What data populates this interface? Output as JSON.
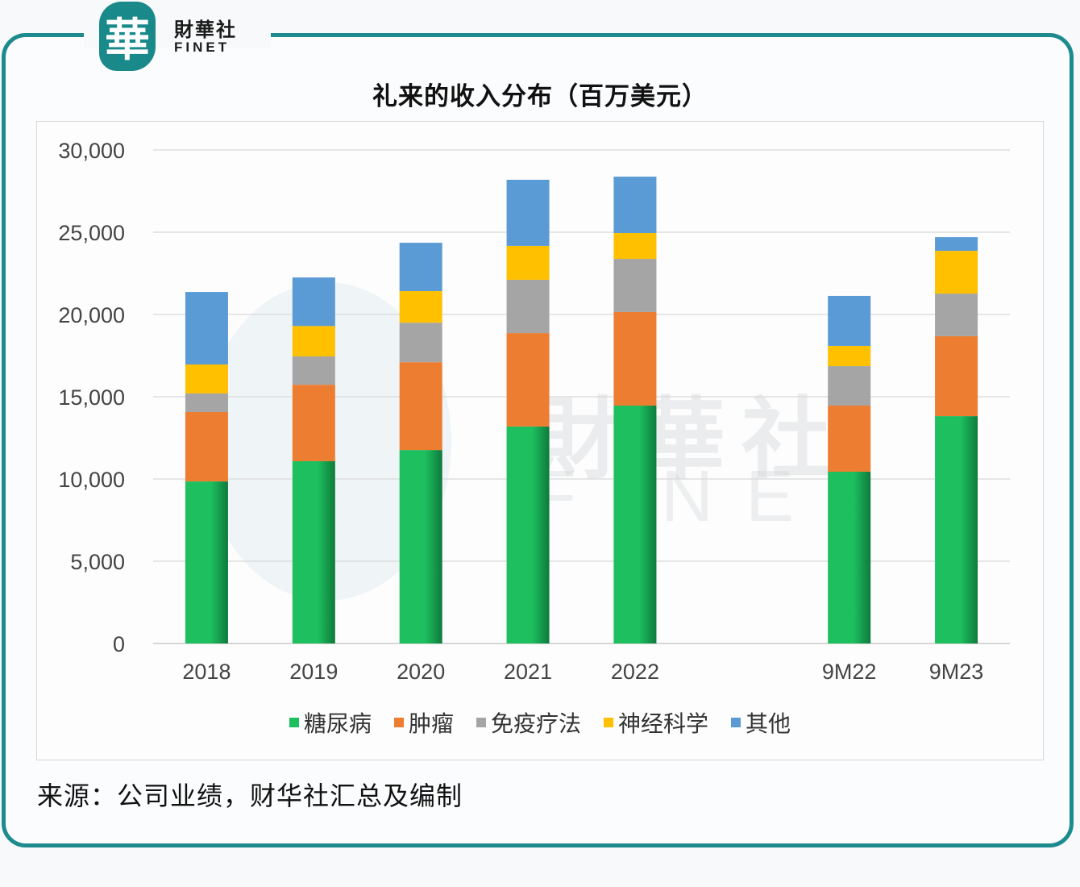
{
  "brand": {
    "badge_glyph": "華",
    "name_cn": "財華社",
    "name_en": "FINET",
    "frame_color": "#1d8b8e"
  },
  "watermark": {
    "cn": "財華社",
    "en": "FINET"
  },
  "source_note": "来源：公司业绩，财华社汇总及编制",
  "chart_data": {
    "type": "bar",
    "stacked": true,
    "title": "礼来的收入分布（百万美元）",
    "xlabel": "",
    "ylabel": "",
    "categories": [
      "2018",
      "2019",
      "2020",
      "2021",
      "2022",
      "",
      "9M22",
      "9M23"
    ],
    "ylim": [
      0,
      30000
    ],
    "yticks": [
      0,
      5000,
      10000,
      15000,
      20000,
      25000,
      30000
    ],
    "ytick_labels": [
      "0",
      "5,000",
      "10,000",
      "15,000",
      "20,000",
      "25,000",
      "30,000"
    ],
    "grid": true,
    "legend_position": "bottom-center",
    "series": [
      {
        "name": "糖尿病",
        "color": "#1dbf5e",
        "values": [
          9850,
          11080,
          11760,
          13190,
          14460,
          null,
          10440,
          13820
        ]
      },
      {
        "name": "肿瘤",
        "color": "#ed7d31",
        "values": [
          4220,
          4650,
          5340,
          5680,
          5690,
          null,
          4020,
          4860
        ]
      },
      {
        "name": "免疫疗法",
        "color": "#a5a5a5",
        "values": [
          1130,
          1720,
          2400,
          3240,
          3230,
          null,
          2400,
          2590
        ]
      },
      {
        "name": "神经科学",
        "color": "#ffc000",
        "values": [
          1760,
          1850,
          1920,
          2060,
          1570,
          null,
          1230,
          2600
        ]
      },
      {
        "name": "其他",
        "color": "#5b9bd5",
        "values": [
          4410,
          2950,
          2940,
          4020,
          3430,
          null,
          3040,
          830
        ]
      }
    ]
  }
}
